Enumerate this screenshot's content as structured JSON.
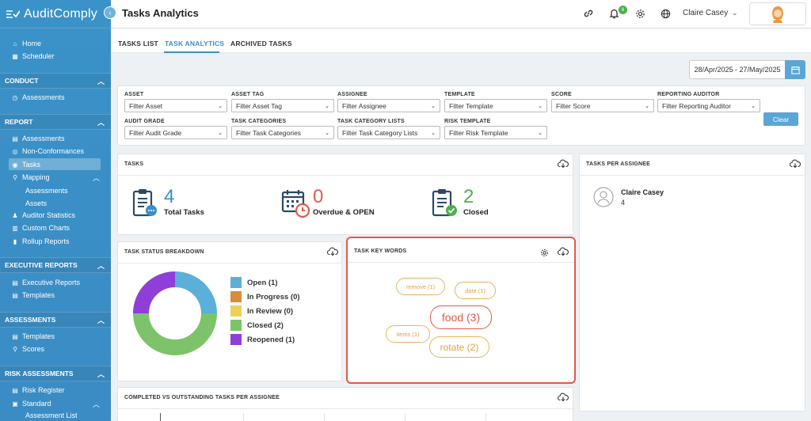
{
  "app": {
    "name": "AuditComply"
  },
  "header": {
    "title": "Tasks Analytics",
    "notification_count": "6",
    "user_name": "Claire Casey"
  },
  "sidebar": {
    "top_items": [
      {
        "label": "Home",
        "icon": "home-icon"
      },
      {
        "label": "Scheduler",
        "icon": "calendar-icon"
      }
    ],
    "sections": {
      "conduct": "CONDUCT",
      "report": "REPORT",
      "executive_reports": "EXECUTIVE REPORTS",
      "assessments": "ASSESSMENTS",
      "risk_assessments": "RISK ASSESSMENTS"
    },
    "conduct_items": [
      {
        "label": "Assessments"
      }
    ],
    "report_items": [
      {
        "label": "Assessments"
      },
      {
        "label": "Non-Conformances"
      },
      {
        "label": "Tasks"
      },
      {
        "label": "Mapping"
      },
      {
        "label": "Assessments"
      },
      {
        "label": "Assets"
      },
      {
        "label": "Auditor Statistics"
      },
      {
        "label": "Custom Charts"
      },
      {
        "label": "Rollup Reports"
      }
    ],
    "exec_items": [
      {
        "label": "Executive Reports"
      },
      {
        "label": "Templates"
      }
    ],
    "assess_items": [
      {
        "label": "Templates"
      },
      {
        "label": "Scores"
      }
    ],
    "risk_items": [
      {
        "label": "Risk Register"
      },
      {
        "label": "Standard"
      },
      {
        "label": "Assessment List"
      }
    ]
  },
  "tabs": [
    {
      "label": "TASKS LIST"
    },
    {
      "label": "TASK ANALYTICS"
    },
    {
      "label": "ARCHIVED TASKS"
    }
  ],
  "date_range": "28/Apr/2025 - 27/May/2025",
  "filters": [
    {
      "label": "ASSET",
      "placeholder": "Filter Asset"
    },
    {
      "label": "ASSET TAG",
      "placeholder": "Filter Asset Tag"
    },
    {
      "label": "ASSIGNEE",
      "placeholder": "Filter Assignee"
    },
    {
      "label": "TEMPLATE",
      "placeholder": "Filter Template"
    },
    {
      "label": "SCORE",
      "placeholder": "Filter Score"
    },
    {
      "label": "REPORTING AUDITOR",
      "placeholder": "Filter Reporting Auditor"
    },
    {
      "label": "AUDIT GRADE",
      "placeholder": "Filter Audit Grade"
    },
    {
      "label": "TASK CATEGORIES",
      "placeholder": "Filter Task Categories"
    },
    {
      "label": "TASK CATEGORY LISTS",
      "placeholder": "Filter Task Category Lists"
    },
    {
      "label": "RISK TEMPLATE",
      "placeholder": "Filter Risk Template"
    }
  ],
  "clear_label": "Clear",
  "tasks_card": {
    "title": "TASKS",
    "stats": [
      {
        "value": "4",
        "label": "Total Tasks",
        "color": "#3a8fc4"
      },
      {
        "value": "0",
        "label": "Overdue & OPEN",
        "color": "#e05a4a"
      },
      {
        "value": "2",
        "label": "Closed",
        "color": "#4caf50"
      }
    ]
  },
  "assignee_card": {
    "title": "TASKS PER ASSIGNEE",
    "name": "Claire Casey",
    "count": "4"
  },
  "status_card": {
    "title": "TASK STATUS BREAKDOWN",
    "legend": [
      {
        "label": "Open (1)",
        "color": "#5ab0d8",
        "value": 1
      },
      {
        "label": "In Progress (0)",
        "color": "#d98c3a",
        "value": 0
      },
      {
        "label": "In Review (0)",
        "color": "#ead15a",
        "value": 0
      },
      {
        "label": "Closed (2)",
        "color": "#7cc36a",
        "value": 2
      },
      {
        "label": "Reopened (1)",
        "color": "#8f3fd8",
        "value": 1
      }
    ]
  },
  "keywords_card": {
    "title": "TASK KEY WORDS",
    "words": [
      {
        "label": "remove (1)"
      },
      {
        "label": "date (1)"
      },
      {
        "label": "food (3)"
      },
      {
        "label": "items (1)"
      },
      {
        "label": "rotate (2)"
      }
    ]
  },
  "completed_card": {
    "title": "COMPLETED VS OUTSTANDING TASKS PER ASSIGNEE"
  }
}
